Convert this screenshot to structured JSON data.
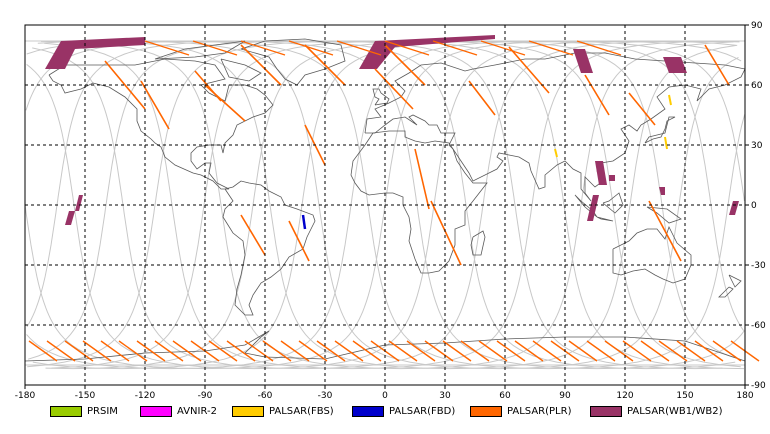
{
  "map": {
    "lon_ticks": [
      "-180",
      "-150",
      "-120",
      "-90",
      "-60",
      "-30",
      "0",
      "30",
      "60",
      "90",
      "120",
      "150",
      "180"
    ],
    "lat_ticks": [
      "90",
      "60",
      "30",
      "0",
      "-30",
      "-60",
      "-90"
    ],
    "lon_range": [
      -180,
      180
    ],
    "lat_range": [
      -90,
      90
    ],
    "grid": "dashed",
    "colors": {
      "coastline": "#5a5a5a",
      "orbit_track": "#c8c8c8",
      "grid": "#000000",
      "frame": "#000000"
    }
  },
  "legend": {
    "items": [
      {
        "label": "PRSIM",
        "color": "#99cc00"
      },
      {
        "label": "AVNIR-2",
        "color": "#ff00ff"
      },
      {
        "label": "PALSAR(FBS)",
        "color": "#ffcc00"
      },
      {
        "label": "PALSAR(FBD)",
        "color": "#0000cc"
      },
      {
        "label": "PALSAR(PLR)",
        "color": "#ff6600"
      },
      {
        "label": "PALSAR(WB1/WB2)",
        "color": "#993366"
      }
    ]
  }
}
